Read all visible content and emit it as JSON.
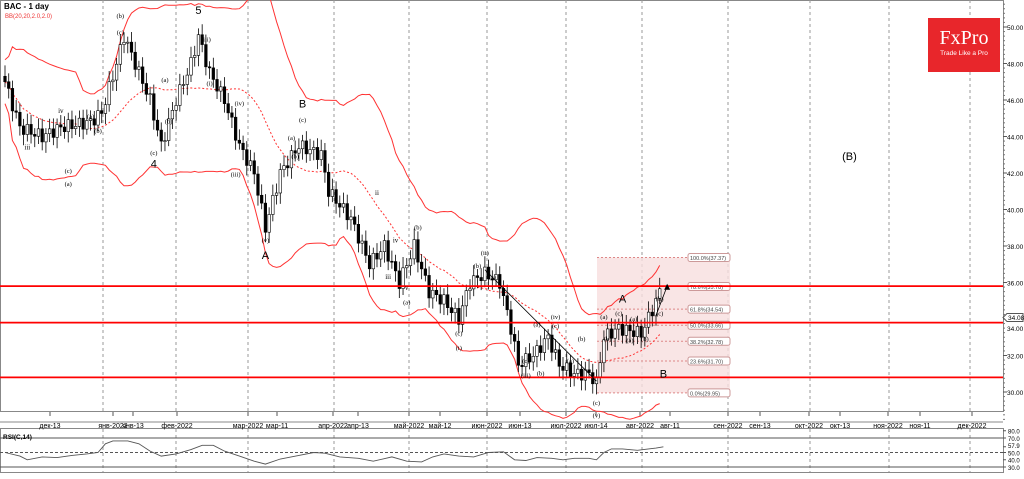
{
  "header": {
    "title": "BAC - 1 day",
    "indicator": "BB(20,20,2.0,2.0)"
  },
  "logo": {
    "name": "FxPro",
    "tagline": "Trade Like a Pro"
  },
  "rsi": {
    "label": "RSI(C,14)",
    "levels": [
      "80.0",
      "70.0",
      "57.9",
      "50.0",
      "40.0",
      "30.0"
    ],
    "path": [
      [
        0,
        50
      ],
      [
        4,
        45
      ],
      [
        6,
        40
      ],
      [
        10,
        44
      ],
      [
        14,
        43
      ],
      [
        18,
        46
      ],
      [
        22,
        48
      ],
      [
        25,
        50
      ],
      [
        27,
        62
      ],
      [
        29,
        66
      ],
      [
        33,
        66
      ],
      [
        36,
        62
      ],
      [
        39,
        52
      ],
      [
        42,
        45
      ],
      [
        46,
        48
      ],
      [
        50,
        54
      ],
      [
        53,
        60
      ],
      [
        56,
        60
      ],
      [
        59,
        52
      ],
      [
        63,
        45
      ],
      [
        67,
        38
      ],
      [
        70,
        34
      ],
      [
        74,
        41
      ],
      [
        79,
        46
      ],
      [
        83,
        50
      ],
      [
        86,
        49
      ],
      [
        90,
        44
      ],
      [
        95,
        42
      ],
      [
        99,
        38
      ],
      [
        104,
        44
      ],
      [
        108,
        38
      ],
      [
        112,
        37
      ],
      [
        115,
        44
      ],
      [
        118,
        48
      ],
      [
        122,
        45
      ],
      [
        126,
        44
      ],
      [
        130,
        50
      ],
      [
        134,
        51
      ],
      [
        137,
        40
      ],
      [
        140,
        39
      ],
      [
        143,
        43
      ],
      [
        147,
        42
      ],
      [
        150,
        40
      ],
      [
        153,
        42
      ],
      [
        157,
        42
      ],
      [
        159,
        40
      ],
      [
        161,
        50
      ],
      [
        163,
        55
      ],
      [
        166,
        55
      ],
      [
        170,
        53
      ],
      [
        173,
        55
      ],
      [
        175,
        56
      ],
      [
        177,
        57.9
      ]
    ]
  },
  "chart_data": {
    "type": "candlestick",
    "title": "BAC - 1 day",
    "ylim": [
      28.4,
      51.3
    ],
    "yticks": [
      "50.00",
      "48.00",
      "46.00",
      "44.00",
      "42.00",
      "40.00",
      "38.00",
      "36.00",
      "34.00",
      "32.00",
      "30.00"
    ],
    "last_price": "34.08",
    "xticks": [
      "дек-13",
      "янв-2022",
      "янв-13",
      "фев-2022",
      "мар-2022",
      "мар-11",
      "апр-2022",
      "апр-13",
      "май-2022",
      "май-12",
      "июн-2022",
      "июн-13",
      "июл-2022",
      "июл-14",
      "авг-2022",
      "авг-11",
      "сен-2022",
      "сен-13",
      "окт-2022",
      "окт-13",
      "ноя-2022",
      "ноя-11",
      "дек-2022"
    ],
    "close_path": [
      [
        0,
        47.0
      ],
      [
        4,
        44.5
      ],
      [
        10,
        44
      ],
      [
        15,
        44.5
      ],
      [
        23,
        44.8
      ],
      [
        26,
        45.3
      ],
      [
        30,
        48
      ],
      [
        32,
        49.5
      ],
      [
        35,
        48
      ],
      [
        39,
        46
      ],
      [
        42,
        43.5
      ],
      [
        46,
        46
      ],
      [
        50,
        48
      ],
      [
        52,
        49.5
      ],
      [
        55,
        47.5
      ],
      [
        59,
        46
      ],
      [
        63,
        43.5
      ],
      [
        67,
        42
      ],
      [
        70,
        39
      ],
      [
        74,
        42
      ],
      [
        79,
        43.5
      ],
      [
        85,
        43
      ],
      [
        87,
        41
      ],
      [
        93,
        39.5
      ],
      [
        98,
        37
      ],
      [
        102,
        38
      ],
      [
        106,
        36
      ],
      [
        110,
        38
      ],
      [
        114,
        35.5
      ],
      [
        118,
        35
      ],
      [
        122,
        34
      ],
      [
        125,
        36
      ],
      [
        129,
        36.5
      ],
      [
        133,
        36
      ],
      [
        136,
        33.5
      ],
      [
        138,
        31.5
      ],
      [
        142,
        32
      ],
      [
        146,
        33
      ],
      [
        149,
        31.5
      ],
      [
        153,
        31
      ],
      [
        157,
        31
      ],
      [
        159,
        30.5
      ],
      [
        161,
        33
      ],
      [
        165,
        33.5
      ],
      [
        171,
        33.2
      ],
      [
        174,
        34.5
      ],
      [
        176,
        35.5
      ]
    ],
    "horizontal_levels": [
      35.8,
      33.8,
      30.8
    ],
    "fibonacci": {
      "levels": [
        {
          "label": "100.0%(37.37)",
          "price": 37.37
        },
        {
          "label": "78.6%(35.78)",
          "price": 35.78
        },
        {
          "label": "61.8%(34.54)",
          "price": 34.54
        },
        {
          "label": "50.0%(33.66)",
          "price": 33.66
        },
        {
          "label": "38.2%(32.78)",
          "price": 32.78
        },
        {
          "label": "23.6%(31.70)",
          "price": 31.7
        },
        {
          "label": "0.0%(29.95)",
          "price": 29.95
        }
      ]
    },
    "wave_labels": [
      {
        "t": "5",
        "d": 52,
        "p": 50.7,
        "big": true
      },
      {
        "t": "4",
        "d": 40,
        "p": 42.3,
        "big": true
      },
      {
        "t": "B",
        "d": 80,
        "p": 45.6,
        "big": true
      },
      {
        "t": "A",
        "d": 70,
        "p": 37.3,
        "big": true
      },
      {
        "t": "A",
        "d": 166,
        "p": 34.9,
        "big": true
      },
      {
        "t": "B",
        "d": 177,
        "p": 30.8,
        "big": true
      },
      {
        "t": "(B)",
        "d": 227,
        "p": 42.7,
        "big": true
      },
      {
        "t": "(b)",
        "d": 31,
        "p": 50.5
      },
      {
        "t": "(c)",
        "d": 31,
        "p": 49.6
      },
      {
        "t": "ii",
        "d": 2,
        "p": 46.1
      },
      {
        "t": "iii",
        "d": 6,
        "p": 43.3
      },
      {
        "t": "iv",
        "d": 15,
        "p": 45.3
      },
      {
        "t": "(c)",
        "d": 17,
        "p": 42.0
      },
      {
        "t": "(a)",
        "d": 17,
        "p": 41.3
      },
      {
        "t": "(a)",
        "d": 23,
        "p": 45.0
      },
      {
        "t": "(b)",
        "d": 25,
        "p": 44.2
      },
      {
        "t": "(iii)",
        "d": 54,
        "p": 49.2
      },
      {
        "t": "(i)",
        "d": 55,
        "p": 46.8
      },
      {
        "t": "(iv)",
        "d": 63,
        "p": 45.7
      },
      {
        "t": "(iii)",
        "d": 62,
        "p": 41.8
      },
      {
        "t": "(v)",
        "d": 70,
        "p": 38.2
      },
      {
        "t": "(a)",
        "d": 43,
        "p": 47.0
      },
      {
        "t": "(b)",
        "d": 44,
        "p": 44.7
      },
      {
        "t": "(c)",
        "d": 40,
        "p": 43.0
      },
      {
        "t": "(c)",
        "d": 80,
        "p": 44.8
      },
      {
        "t": "(a)",
        "d": 77,
        "p": 43.8
      },
      {
        "t": "(b)",
        "d": 78,
        "p": 42.8
      },
      {
        "t": "ii",
        "d": 100,
        "p": 40.8
      },
      {
        "t": "iv",
        "d": 105,
        "p": 38.2
      },
      {
        "t": "iii",
        "d": 103,
        "p": 36.2
      },
      {
        "t": "v",
        "d": 108,
        "p": 35.6
      },
      {
        "t": "(a)",
        "d": 108,
        "p": 34.8
      },
      {
        "t": "(b)",
        "d": 111,
        "p": 38.9
      },
      {
        "t": "(c)",
        "d": 122,
        "p": 33.1
      },
      {
        "t": "(i)",
        "d": 122,
        "p": 32.3
      },
      {
        "t": "(ii)",
        "d": 129,
        "p": 37.5
      },
      {
        "t": "(a)",
        "d": 131,
        "p": 36.2
      },
      {
        "t": "(b)",
        "d": 127,
        "p": 36.8
      },
      {
        "t": "(a)",
        "d": 143,
        "p": 33.6
      },
      {
        "t": "(c)",
        "d": 140,
        "p": 31.6
      },
      {
        "t": "(iii)",
        "d": 140,
        "p": 30.8
      },
      {
        "t": "(b)",
        "d": 144,
        "p": 30.9
      },
      {
        "t": "(iv)",
        "d": 148,
        "p": 34.0
      },
      {
        "t": "(c)",
        "d": 148,
        "p": 33.5
      },
      {
        "t": "(a)",
        "d": 152,
        "p": 31.6
      },
      {
        "t": "(b)",
        "d": 155,
        "p": 32.8
      },
      {
        "t": "(c)",
        "d": 159,
        "p": 29.3
      },
      {
        "t": "(v)",
        "d": 159,
        "p": 28.6
      },
      {
        "t": "(a)",
        "d": 161,
        "p": 34.0
      },
      {
        "t": "(b)",
        "d": 162,
        "p": 32.8
      },
      {
        "t": "(c)",
        "d": 165,
        "p": 34.2
      },
      {
        "t": "(a)",
        "d": 169,
        "p": 33.9
      },
      {
        "t": "(b)",
        "d": 172,
        "p": 32.8
      },
      {
        "t": "(a)",
        "d": 168,
        "p": 32.7
      },
      {
        "t": "(b)",
        "d": 176,
        "p": 35.0
      },
      {
        "t": "(c)",
        "d": 176,
        "p": 34.2
      }
    ]
  }
}
